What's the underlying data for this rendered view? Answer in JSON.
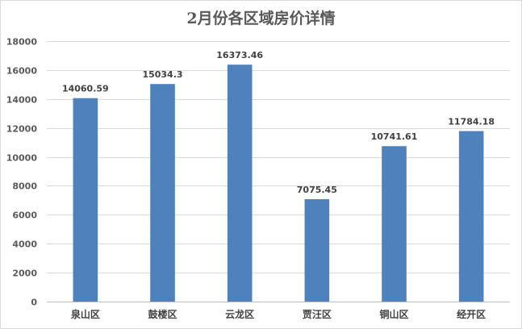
{
  "chart_data": {
    "type": "bar",
    "title": "2月份各区域房价详情",
    "categories": [
      "泉山区",
      "鼓楼区",
      "云龙区",
      "贾汪区",
      "铜山区",
      "经开区"
    ],
    "values": [
      14060.59,
      15034.3,
      16373.46,
      7075.45,
      10741.61,
      11784.18
    ],
    "data_labels": [
      "14060.59",
      "15034.3",
      "16373.46",
      "7075.45",
      "10741.61",
      "11784.18"
    ],
    "ylim": [
      0,
      18000
    ],
    "yticks": [
      0,
      2000,
      4000,
      6000,
      8000,
      10000,
      12000,
      14000,
      16000,
      18000
    ],
    "grid": true,
    "xlabel": "",
    "ylabel": "",
    "colors": {
      "bar": "#4F81BD",
      "grid": "#d9d9d9",
      "axis": "#bfbfbf"
    }
  }
}
